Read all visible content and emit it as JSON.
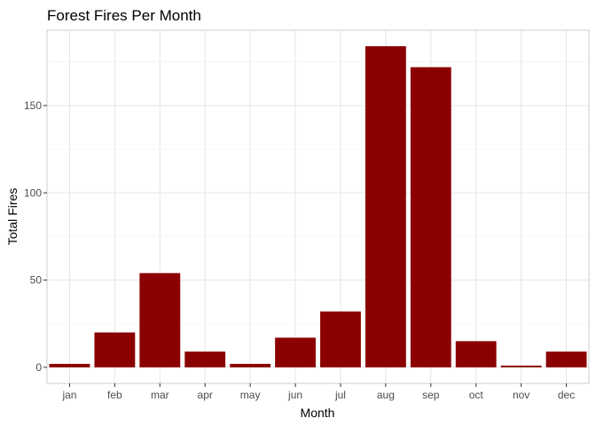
{
  "chart_data": {
    "type": "bar",
    "title": "Forest Fires Per Month",
    "xlabel": "Month",
    "ylabel": "Total Fires",
    "categories": [
      "jan",
      "feb",
      "mar",
      "apr",
      "may",
      "jun",
      "jul",
      "aug",
      "sep",
      "oct",
      "nov",
      "dec"
    ],
    "values": [
      2,
      20,
      54,
      9,
      2,
      17,
      32,
      184,
      172,
      15,
      1,
      9
    ],
    "ylim": [
      -9.2,
      193.2
    ],
    "yticks": [
      0,
      50,
      100,
      150
    ],
    "grid": true,
    "legend": "none",
    "bar_color": "#8b0000",
    "grid_color": "#e5e5e5",
    "panel_border_color": "#cccccc"
  }
}
